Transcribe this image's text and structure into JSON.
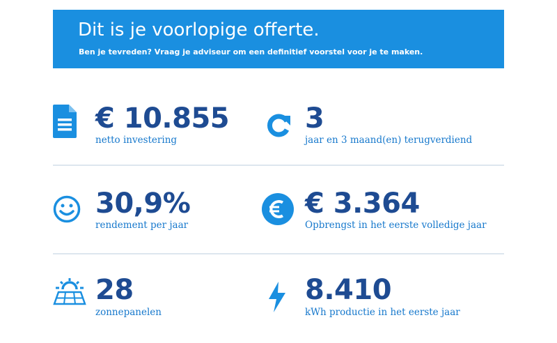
{
  "banner": {
    "title": "Dit is je voorlopige offerte.",
    "subtitle": "Ben je tevreden? Vraag je adviseur om een definitief voorstel voor je te maken."
  },
  "stats": {
    "investment": {
      "value": "€ 10.855",
      "label": "netto investering",
      "icon": "document-icon"
    },
    "payback": {
      "value": "3",
      "label": "jaar en 3 maand(en) terugverdiend",
      "icon": "refresh-icon"
    },
    "yield": {
      "value": "30,9%",
      "label": "rendement per jaar",
      "icon": "smiley-icon"
    },
    "revenue": {
      "value": "€ 3.364",
      "label": "Opbrengst in het eerste volledige jaar",
      "icon": "euro-coin-icon"
    },
    "panels": {
      "value": "28",
      "label": "zonnepanelen",
      "icon": "solar-panel-icon"
    },
    "production": {
      "value": "8.410",
      "label": "kWh productie in het eerste jaar",
      "icon": "lightning-icon"
    }
  },
  "colors": {
    "banner": "#1a8fe0",
    "value": "#1e4b92",
    "label": "#1678cc",
    "icon": "#1a8fe0",
    "divider": "#dde6ee"
  }
}
